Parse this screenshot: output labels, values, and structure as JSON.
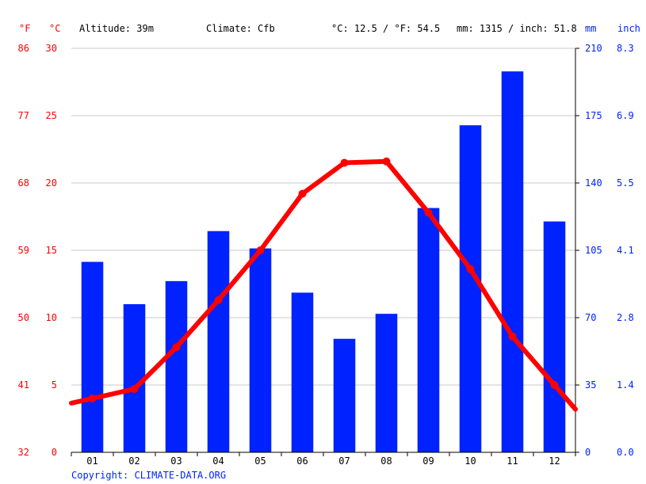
{
  "header": {
    "altitude": "Altitude: 39m",
    "climate": "Climate: Cfb",
    "temp_avg": "°C: 12.5 / °F: 54.5",
    "precip_total": "mm: 1315 / inch: 51.8"
  },
  "axis_units": {
    "f": "°F",
    "c": "°C",
    "mm": "mm",
    "inch": "inch"
  },
  "footer": {
    "copyright": "Copyright: CLIMATE-DATA.ORG"
  },
  "colors": {
    "temperature": "#ff0000",
    "precipitation": "#0022ff",
    "grid": "#c8c8c8"
  },
  "chart_data": {
    "type": "bar",
    "categories": [
      "01",
      "02",
      "03",
      "04",
      "05",
      "06",
      "07",
      "08",
      "09",
      "10",
      "11",
      "12"
    ],
    "series": [
      {
        "type": "bar",
        "axis": "right",
        "unit": "mm",
        "values": [
          99,
          77,
          89,
          115,
          106,
          83,
          59,
          72,
          127,
          170,
          198,
          120
        ]
      },
      {
        "type": "line",
        "axis": "left",
        "unit": "°C",
        "values": [
          4.0,
          4.7,
          7.8,
          11.3,
          15.0,
          19.2,
          21.5,
          21.6,
          17.8,
          13.6,
          8.6,
          5.0
        ]
      }
    ],
    "left_axis": {
      "ticks_c": [
        "0",
        "5",
        "10",
        "15",
        "20",
        "25",
        "30"
      ],
      "ticks_f": [
        "32",
        "41",
        "50",
        "59",
        "68",
        "77",
        "86"
      ],
      "range_c": [
        0,
        30
      ]
    },
    "right_axis": {
      "ticks_mm": [
        "0",
        "35",
        "70",
        "105",
        "140",
        "175",
        "210"
      ],
      "ticks_inch": [
        "0.0",
        "1.4",
        "2.8",
        "4.1",
        "5.5",
        "6.9",
        "8.3"
      ],
      "range_mm": [
        0,
        210
      ]
    },
    "grid": true,
    "legend": "none"
  }
}
